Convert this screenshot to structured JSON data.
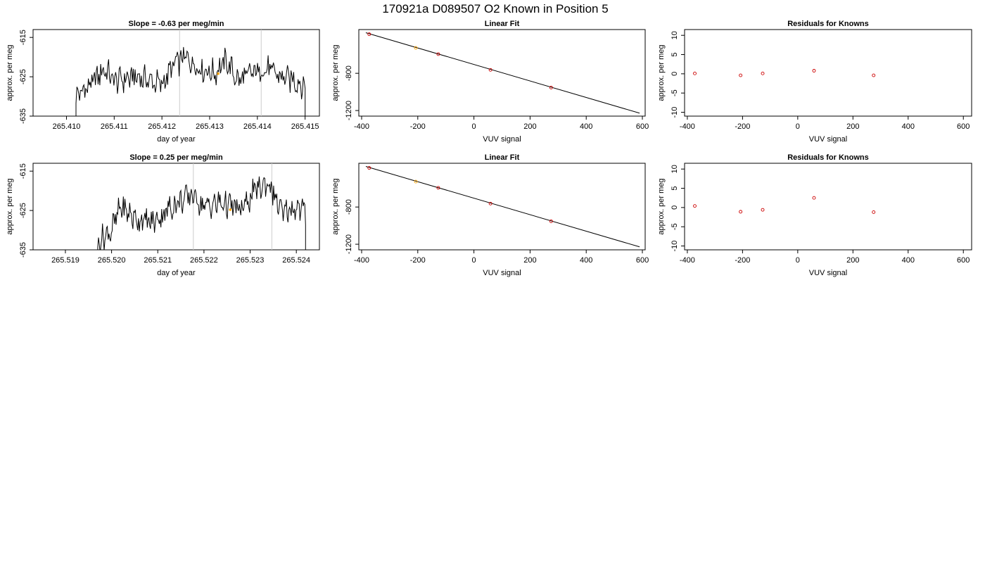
{
  "header": {
    "title": "170921a      D089507   O2 Known in Position  5"
  },
  "colors": {
    "trace": "#000000",
    "axes": "#000000",
    "vline": "#cccccc",
    "highlight": "#ffa500",
    "residual_point": "#cc0000",
    "fit_point": "#cc0000"
  },
  "chart_data": [
    {
      "type": "line",
      "title": "Slope =  -0.63  per meg/min",
      "xlabel": "day of year",
      "ylabel": "approx. per meg",
      "xlim": [
        265.4093,
        265.4153
      ],
      "ylim": [
        -635,
        -613
      ],
      "xticks": [
        265.41,
        265.411,
        265.412,
        265.413,
        265.414,
        265.415
      ],
      "xtick_labels": [
        "265.410",
        "265.411",
        "265.412",
        "265.413",
        "265.414",
        "265.415"
      ],
      "yticks": [
        -615,
        -625,
        -635
      ],
      "ytick_labels": [
        "-615",
        "-625",
        "-635"
      ],
      "x_start": 265.4102,
      "x_end": 265.415,
      "y_edge_start": -636,
      "y_edge_end": -636,
      "y_start": -629,
      "y_end": -627.5,
      "vlines": [
        265.41237,
        265.41408
      ],
      "highlight_point": {
        "x": 265.41318,
        "y": -624.2
      },
      "trace_pattern": [
        {
          "x": 265.4102,
          "y": -630
        },
        {
          "x": 265.4105,
          "y": -627
        },
        {
          "x": 265.4108,
          "y": -623
        },
        {
          "x": 265.411,
          "y": -626
        },
        {
          "x": 265.4115,
          "y": -625
        },
        {
          "x": 265.412,
          "y": -627
        },
        {
          "x": 265.41225,
          "y": -622
        },
        {
          "x": 265.4125,
          "y": -620
        },
        {
          "x": 265.4128,
          "y": -623
        },
        {
          "x": 265.4131,
          "y": -624
        },
        {
          "x": 265.41335,
          "y": -621
        },
        {
          "x": 265.4136,
          "y": -626
        },
        {
          "x": 265.4139,
          "y": -624
        },
        {
          "x": 265.4142,
          "y": -623
        },
        {
          "x": 265.4145,
          "y": -625
        },
        {
          "x": 265.4148,
          "y": -626
        },
        {
          "x": 265.415,
          "y": -627.5
        }
      ]
    },
    {
      "type": "scatter",
      "title": "Linear Fit",
      "xlabel": "VUV signal",
      "ylabel": "approx. per meg",
      "xlim": [
        -410,
        610
      ],
      "ylim": [
        -1260,
        -330
      ],
      "xticks": [
        -400,
        -200,
        0,
        200,
        400,
        600
      ],
      "xtick_labels": [
        "-400",
        "-200",
        "0",
        "200",
        "400",
        "600"
      ],
      "yticks": [
        -800,
        -1200
      ],
      "ytick_labels": [
        "-800",
        "-1200"
      ],
      "points": [
        [
          -373,
          -380
        ],
        [
          -207,
          -527
        ],
        [
          -127,
          -594
        ],
        [
          59,
          -763
        ],
        [
          275,
          -953
        ]
      ],
      "highlight_x": -207,
      "fit_line": [
        [
          -385,
          -364
        ],
        [
          590,
          -1228
        ]
      ]
    },
    {
      "type": "scatter",
      "title": "Residuals for Knowns",
      "xlabel": "VUV signal",
      "ylabel": "approx. per meg",
      "xlim": [
        -410,
        630
      ],
      "ylim": [
        -11,
        11.5
      ],
      "xticks": [
        -400,
        -200,
        0,
        200,
        400,
        600
      ],
      "xtick_labels": [
        "-400",
        "-200",
        "0",
        "200",
        "400",
        "600"
      ],
      "yticks": [
        10,
        5,
        0,
        -5,
        -10
      ],
      "ytick_labels": [
        "10",
        "5",
        "0",
        "-5",
        "-10"
      ],
      "points": [
        [
          -373,
          0.1
        ],
        [
          -207,
          -0.4
        ],
        [
          -127,
          0.1
        ],
        [
          59,
          0.8
        ],
        [
          275,
          -0.4
        ]
      ]
    },
    {
      "type": "line",
      "title": "Slope =  0.25  per meg/min",
      "xlabel": "day of year",
      "ylabel": "approx. per meg",
      "xlim": [
        265.5183,
        265.5245
      ],
      "ylim": [
        -635,
        -613
      ],
      "xticks": [
        265.519,
        265.52,
        265.521,
        265.522,
        265.523,
        265.524
      ],
      "xtick_labels": [
        "265.519",
        "265.520",
        "265.521",
        "265.522",
        "265.523",
        "265.524"
      ],
      "yticks": [
        -615,
        -625,
        -635
      ],
      "ytick_labels": [
        "-615",
        "-625",
        "-635"
      ],
      "x_start": 265.5197,
      "x_end": 265.5242,
      "y_edge_start": -636,
      "y_edge_end": -636,
      "y_start": -633,
      "y_end": -625.5,
      "vlines": [
        265.52177,
        265.52347
      ],
      "highlight_point": {
        "x": 265.52257,
        "y": -624.8
      },
      "trace_pattern": [
        {
          "x": 265.5197,
          "y": -633
        },
        {
          "x": 265.52,
          "y": -630
        },
        {
          "x": 265.5202,
          "y": -624
        },
        {
          "x": 265.5205,
          "y": -627
        },
        {
          "x": 265.5209,
          "y": -628
        },
        {
          "x": 265.5213,
          "y": -624
        },
        {
          "x": 265.5216,
          "y": -622
        },
        {
          "x": 265.52175,
          "y": -621
        },
        {
          "x": 265.522,
          "y": -624
        },
        {
          "x": 265.5224,
          "y": -623
        },
        {
          "x": 265.5228,
          "y": -625
        },
        {
          "x": 265.5231,
          "y": -620
        },
        {
          "x": 265.5234,
          "y": -618
        },
        {
          "x": 265.5237,
          "y": -626
        },
        {
          "x": 265.524,
          "y": -624
        },
        {
          "x": 265.5242,
          "y": -625.5
        }
      ]
    },
    {
      "type": "scatter",
      "title": "Linear Fit",
      "xlabel": "VUV signal",
      "ylabel": "approx. per meg",
      "xlim": [
        -410,
        610
      ],
      "ylim": [
        -1260,
        -330
      ],
      "xticks": [
        -400,
        -200,
        0,
        200,
        400,
        600
      ],
      "xtick_labels": [
        "-400",
        "-200",
        "0",
        "200",
        "400",
        "600"
      ],
      "yticks": [
        -800,
        -1200
      ],
      "ytick_labels": [
        "-800",
        "-1200"
      ],
      "points": [
        [
          -373,
          -380
        ],
        [
          -207,
          -527
        ],
        [
          -127,
          -594
        ],
        [
          59,
          -763
        ],
        [
          275,
          -953
        ]
      ],
      "highlight_x": -207,
      "fit_line": [
        [
          -385,
          -364
        ],
        [
          590,
          -1228
        ]
      ]
    },
    {
      "type": "scatter",
      "title": "Residuals for Knowns",
      "xlabel": "VUV signal",
      "ylabel": "approx. per meg",
      "xlim": [
        -410,
        630
      ],
      "ylim": [
        -11,
        11.5
      ],
      "xticks": [
        -400,
        -200,
        0,
        200,
        400,
        600
      ],
      "xtick_labels": [
        "-400",
        "-200",
        "0",
        "200",
        "400",
        "600"
      ],
      "yticks": [
        10,
        5,
        0,
        -5,
        -10
      ],
      "ytick_labels": [
        "10",
        "5",
        "0",
        "-5",
        "-10"
      ],
      "points": [
        [
          -373,
          0.4
        ],
        [
          -207,
          -1.1
        ],
        [
          -127,
          -0.6
        ],
        [
          59,
          2.5
        ],
        [
          275,
          -1.2
        ]
      ]
    }
  ]
}
